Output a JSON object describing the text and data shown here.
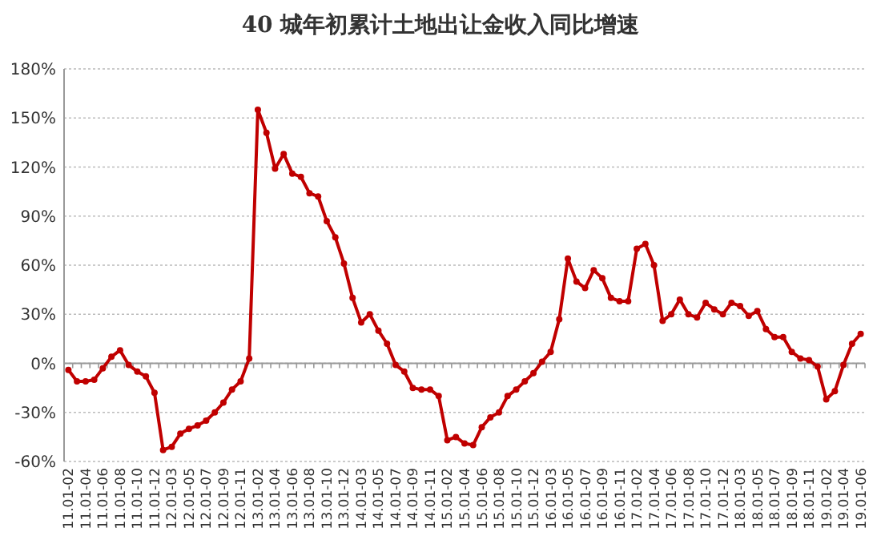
{
  "chart_data": {
    "type": "line",
    "title": "40 城年初累计土地出让金收入同比增速",
    "categories": [
      "11.01-02",
      null,
      "11.01-04",
      null,
      "11.01-06",
      null,
      "11.01-08",
      null,
      "11.01-10",
      null,
      "11.01-12",
      null,
      "12.01-03",
      null,
      "12.01-05",
      null,
      "12.01-07",
      null,
      "12.01-09",
      null,
      "12.01-11",
      null,
      "13.01-02",
      null,
      "13.01-04",
      null,
      "13.01-06",
      null,
      "13.01-08",
      null,
      "13.01-10",
      null,
      "13.01-12",
      null,
      "14.01-03",
      null,
      "14.01-05",
      null,
      "14.01-07",
      null,
      "14.01-09",
      null,
      "14.01-11",
      null,
      "15.01-02",
      null,
      "15.01-04",
      null,
      "15.01-06",
      null,
      "15.01-08",
      null,
      "15.01-10",
      null,
      "15.01-12",
      null,
      "16.01-03",
      null,
      "16.01-05",
      null,
      "16.01-07",
      null,
      "16.01-09",
      null,
      "16.01-11",
      null,
      "17.01-02",
      null,
      "17.01-04",
      null,
      "17.01-06",
      null,
      "17.01-08",
      null,
      "17.01-10",
      null,
      "17.01-12",
      null,
      "18.01-03",
      null,
      "18.01-05",
      null,
      "18.01-07",
      null,
      "18.01-09",
      null,
      "18.01-11",
      null,
      "19.01-02",
      null,
      "19.01-04",
      null,
      "19.01-06"
    ],
    "series": [
      {
        "color": "#c00000",
        "values": [
          -4,
          -11,
          -11,
          -10,
          -3,
          4,
          8,
          -1,
          -5,
          -8,
          -18,
          -53,
          -51,
          -43,
          -40,
          -38,
          -35,
          -30,
          -24,
          -16,
          -11,
          3,
          155,
          141,
          119,
          128,
          116,
          114,
          104,
          102,
          87,
          77,
          61,
          40,
          25,
          30,
          20,
          12,
          -1,
          -5,
          -15,
          -16,
          -16,
          -20,
          -47,
          -45,
          -49,
          -50,
          -39,
          -33,
          -30,
          -20,
          -16,
          -11,
          -6,
          1,
          7,
          27,
          64,
          50,
          46,
          57,
          52,
          40,
          38,
          38,
          70,
          73,
          60,
          26,
          30,
          39,
          30,
          28,
          37,
          33,
          30,
          37,
          35,
          29,
          32,
          21,
          16,
          16,
          7,
          3,
          2,
          -2,
          -22,
          -17,
          -1,
          12,
          18
        ]
      }
    ],
    "ylim": [
      -60,
      180
    ],
    "yticks": [
      {
        "value": -60,
        "label": "-60%"
      },
      {
        "value": -30,
        "label": "-30%"
      },
      {
        "value": 0,
        "label": "0%"
      },
      {
        "value": 30,
        "label": "30%"
      },
      {
        "value": 60,
        "label": "60%"
      },
      {
        "value": 90,
        "label": "90%"
      },
      {
        "value": 120,
        "label": "120%"
      },
      {
        "value": 150,
        "label": "150%"
      },
      {
        "value": 180,
        "label": "180%"
      }
    ],
    "grid": "y",
    "marker": "circle",
    "line_style": "solid"
  }
}
